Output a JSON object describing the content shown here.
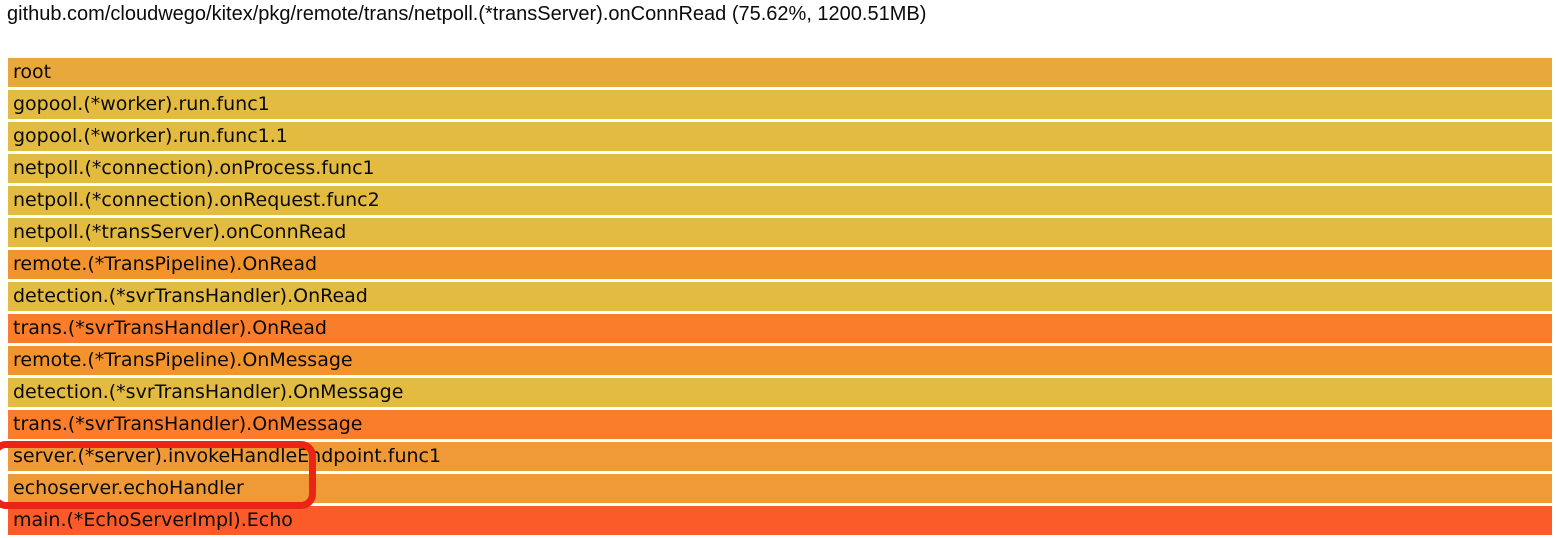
{
  "header": {
    "title": "github.com/cloudwego/kitex/pkg/remote/trans/netpoll.(*transServer).onConnRead (75.62%, 1200.51MB)"
  },
  "chart_data": {
    "type": "flamegraph",
    "title": "github.com/cloudwego/kitex/pkg/remote/trans/netpoll.(*transServer).onConnRead (75.62%, 1200.51MB)",
    "selected_node": {
      "function": "github.com/cloudwego/kitex/pkg/remote/trans/netpoll.(*transServer).onConnRead",
      "percent": "75.62%",
      "value": "1200.51MB"
    },
    "orientation": "top-down",
    "frames": [
      {
        "label": "root",
        "width_pct": 100,
        "color": "#e9a83b"
      },
      {
        "label": "gopool.(*worker).run.func1",
        "width_pct": 100,
        "color": "#e3bb41"
      },
      {
        "label": "gopool.(*worker).run.func1.1",
        "width_pct": 100,
        "color": "#e3bb41"
      },
      {
        "label": "netpoll.(*connection).onProcess.func1",
        "width_pct": 100,
        "color": "#e3bb41"
      },
      {
        "label": "netpoll.(*connection).onRequest.func2",
        "width_pct": 100,
        "color": "#e3bb41"
      },
      {
        "label": "netpoll.(*transServer).onConnRead",
        "width_pct": 100,
        "color": "#e3bb41"
      },
      {
        "label": "remote.(*TransPipeline).OnRead",
        "width_pct": 100,
        "color": "#f2932d"
      },
      {
        "label": "detection.(*svrTransHandler).OnRead",
        "width_pct": 100,
        "color": "#e3bb41"
      },
      {
        "label": "trans.(*svrTransHandler).OnRead",
        "width_pct": 100,
        "color": "#f97d2a"
      },
      {
        "label": "remote.(*TransPipeline).OnMessage",
        "width_pct": 100,
        "color": "#f2932d"
      },
      {
        "label": "detection.(*svrTransHandler).OnMessage",
        "width_pct": 100,
        "color": "#e3bb41"
      },
      {
        "label": "trans.(*svrTransHandler).OnMessage",
        "width_pct": 100,
        "color": "#f97d2a"
      },
      {
        "label": "server.(*server).invokeHandleEndpoint.func1",
        "width_pct": 100,
        "color": "#ef9937"
      },
      {
        "label": "echoserver.echoHandler",
        "width_pct": 100,
        "color": "#ef9937"
      },
      {
        "label": "main.(*EchoServerImpl).Echo",
        "width_pct": 100,
        "color": "#fb5b28"
      }
    ],
    "annotation": {
      "shape": "rounded-rect",
      "color": "#ea2517",
      "highlights": [
        "server.(*server).invokeHandleEndpoint.func1",
        "echoserver.echoHandler"
      ]
    }
  }
}
